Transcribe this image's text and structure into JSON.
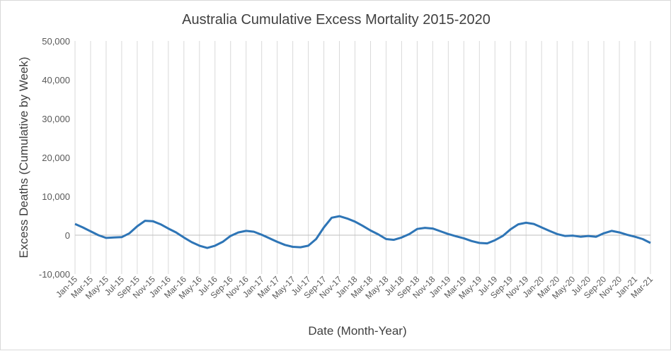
{
  "chart_data": {
    "type": "line",
    "title": "Australia Cumulative Excess Mortality 2015-2020",
    "xlabel": "Date (Month-Year)",
    "ylabel": "Excess Deaths (Cumulative by Week)",
    "ylim": [
      -10000,
      50000
    ],
    "yticks": [
      -10000,
      0,
      10000,
      20000,
      30000,
      40000,
      50000
    ],
    "ytick_labels": [
      "-10,000",
      "0",
      "10,000",
      "20,000",
      "30,000",
      "40,000",
      "50,000"
    ],
    "grid": {
      "x": true,
      "y": false
    },
    "legend": "none",
    "line_color": "#2E75B6",
    "grid_color": "#d9d9d9",
    "x_tick_labels": [
      "Jan-15",
      "Mar-15",
      "May-15",
      "Jul-15",
      "Sep-15",
      "Nov-15",
      "Jan-16",
      "Mar-16",
      "May-16",
      "Jul-16",
      "Sep-16",
      "Nov-16",
      "Jan-17",
      "Mar-17",
      "May-17",
      "Jul-17",
      "Sep-17",
      "Nov-17",
      "Jan-18",
      "Mar-18",
      "May-18",
      "Jul-18",
      "Sep-18",
      "Nov-18",
      "Jan-19",
      "Mar-19",
      "May-19",
      "Jul-19",
      "Sep-19",
      "Nov-19",
      "Jan-20",
      "Mar-20",
      "May-20",
      "Jul-20",
      "Sep-20",
      "Nov-20",
      "Jan-21",
      "Mar-21"
    ],
    "series": [
      {
        "x": [
          "Jan-15",
          "Feb-15",
          "Mar-15",
          "Apr-15",
          "May-15",
          "Jun-15",
          "Jul-15",
          "Aug-15",
          "Sep-15",
          "Oct-15",
          "Nov-15",
          "Dec-15",
          "Jan-16",
          "Feb-16",
          "Mar-16",
          "Apr-16",
          "May-16",
          "Jun-16",
          "Jul-16",
          "Aug-16",
          "Sep-16",
          "Oct-16",
          "Nov-16",
          "Dec-16",
          "Jan-17",
          "Feb-17",
          "Mar-17",
          "Apr-17",
          "May-17",
          "Jun-17",
          "Jul-17",
          "Aug-17",
          "Sep-17",
          "Oct-17",
          "Nov-17",
          "Dec-17",
          "Jan-18",
          "Feb-18",
          "Mar-18",
          "Apr-18",
          "May-18",
          "Jun-18",
          "Jul-18",
          "Aug-18",
          "Sep-18",
          "Oct-18",
          "Nov-18",
          "Dec-18",
          "Jan-19",
          "Feb-19",
          "Mar-19",
          "Apr-19",
          "May-19",
          "Jun-19",
          "Jul-19",
          "Aug-19",
          "Sep-19",
          "Oct-19",
          "Nov-19",
          "Dec-19",
          "Jan-20",
          "Feb-20",
          "Mar-20",
          "Apr-20",
          "May-20",
          "Jun-20",
          "Jul-20",
          "Aug-20",
          "Sep-20",
          "Oct-20",
          "Nov-20",
          "Dec-20",
          "Jan-21",
          "Feb-21",
          "Mar-21"
        ],
        "values": [
          2900,
          2000,
          1000,
          0,
          -700,
          -600,
          -500,
          500,
          2300,
          3700,
          3600,
          2800,
          1700,
          700,
          -600,
          -1800,
          -2700,
          -3300,
          -2700,
          -1700,
          -200,
          700,
          1100,
          900,
          100,
          -800,
          -1700,
          -2500,
          -3000,
          -3100,
          -2700,
          -1000,
          2000,
          4500,
          4900,
          4300,
          3500,
          2400,
          1200,
          200,
          -1000,
          -1200,
          -600,
          300,
          1600,
          1900,
          1700,
          1000,
          300,
          -300,
          -800,
          -1500,
          -2000,
          -2100,
          -1300,
          -200,
          1500,
          2800,
          3200,
          2900,
          2000,
          1100,
          300,
          -200,
          -100,
          -400,
          -200,
          -400,
          500,
          1100,
          700,
          100,
          -400,
          -1000,
          -2000
        ]
      }
    ]
  }
}
